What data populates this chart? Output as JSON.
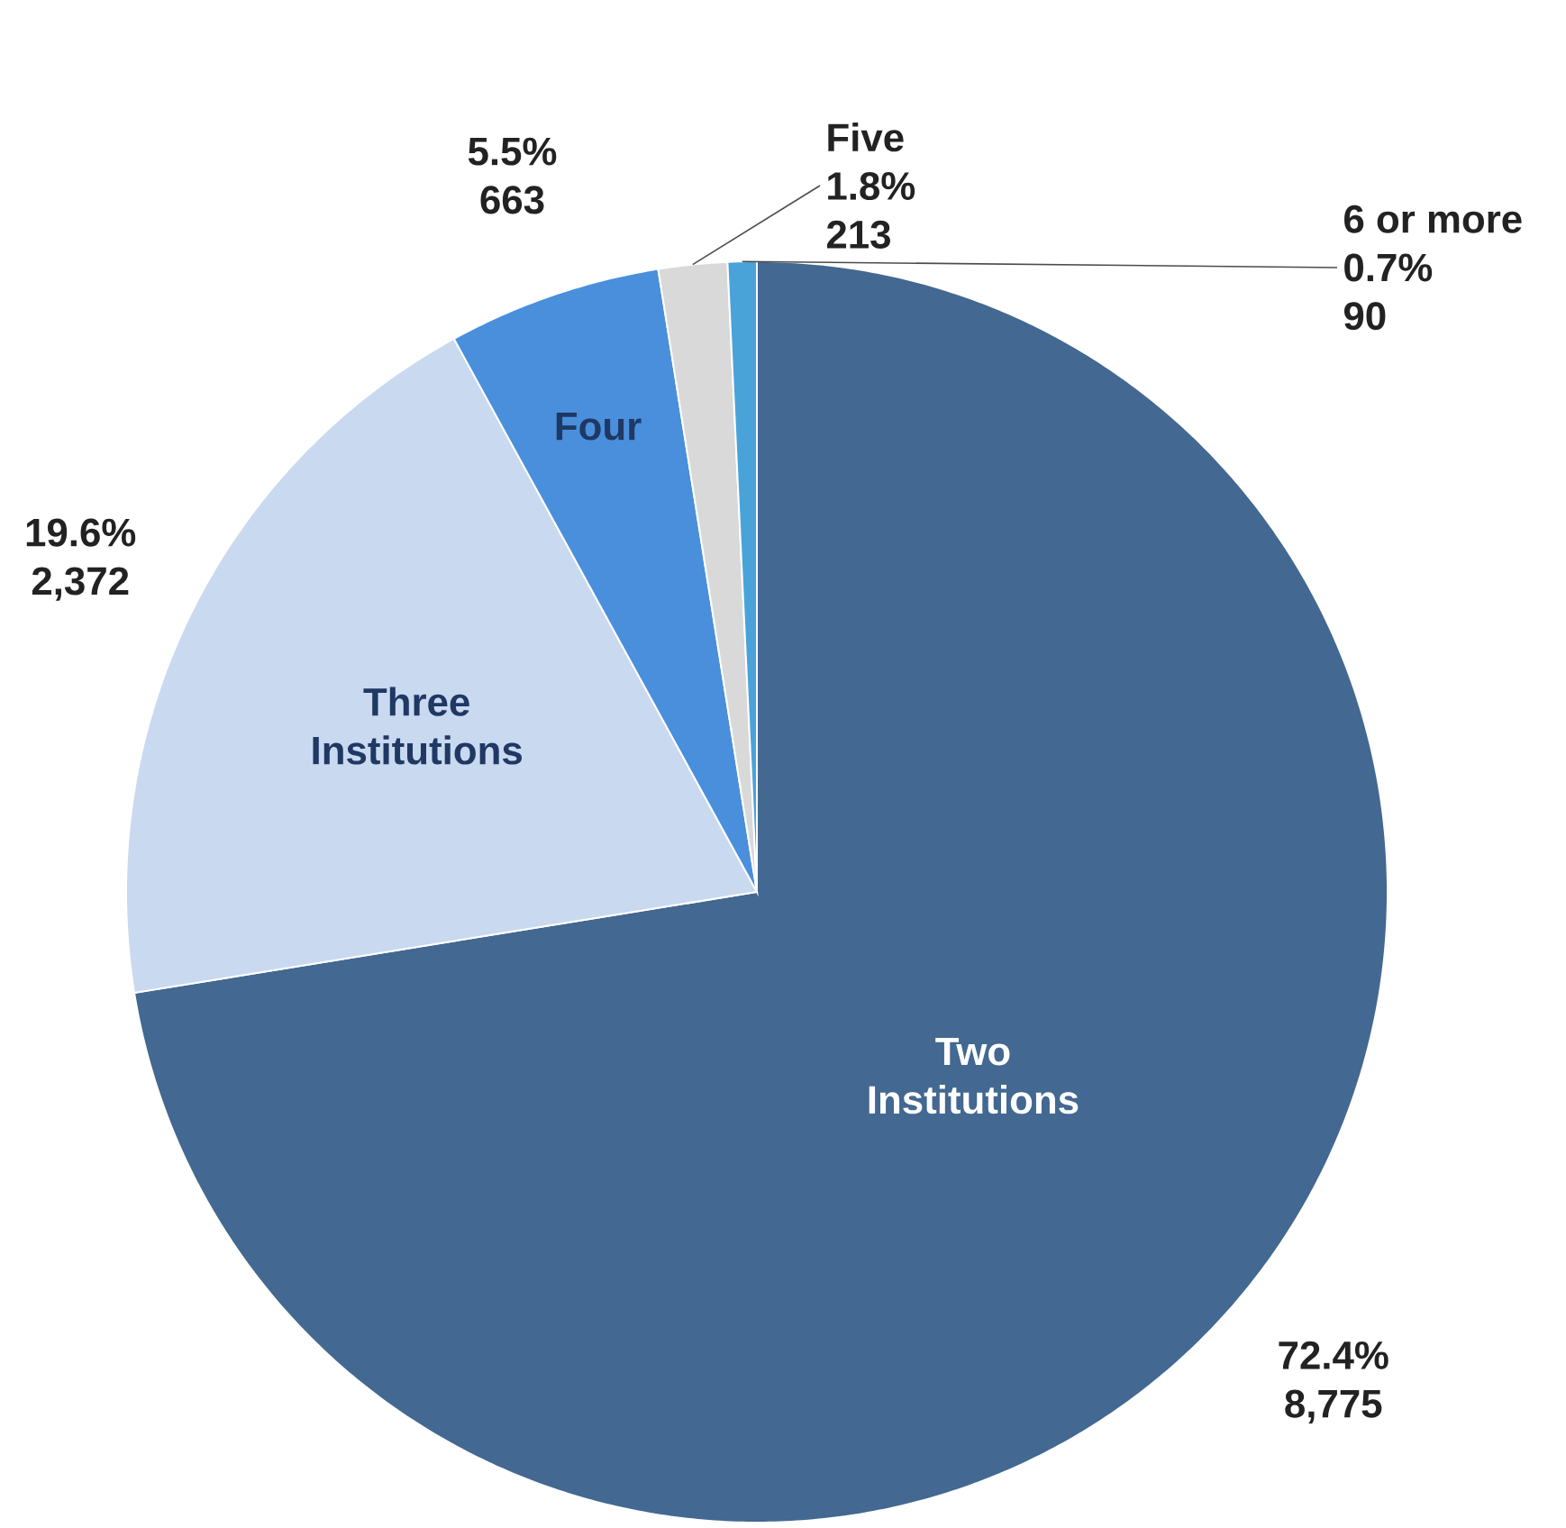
{
  "chart_data": {
    "type": "pie",
    "categories": [
      "Two Institutions",
      "Three Institutions",
      "Four",
      "Five",
      "6 or more"
    ],
    "values": [
      8775,
      2372,
      663,
      213,
      90
    ],
    "colors": [
      "#436891",
      "#c9d9f0",
      "#4a8fdc",
      "#d9d9d9",
      "#4aa3d8"
    ],
    "value_labels": [
      "8,775",
      "2,372",
      "663",
      "213",
      "90"
    ],
    "annotations": [
      "72.4%",
      "19.6%",
      "5.5%",
      "1.8%",
      "0.7%"
    ]
  }
}
